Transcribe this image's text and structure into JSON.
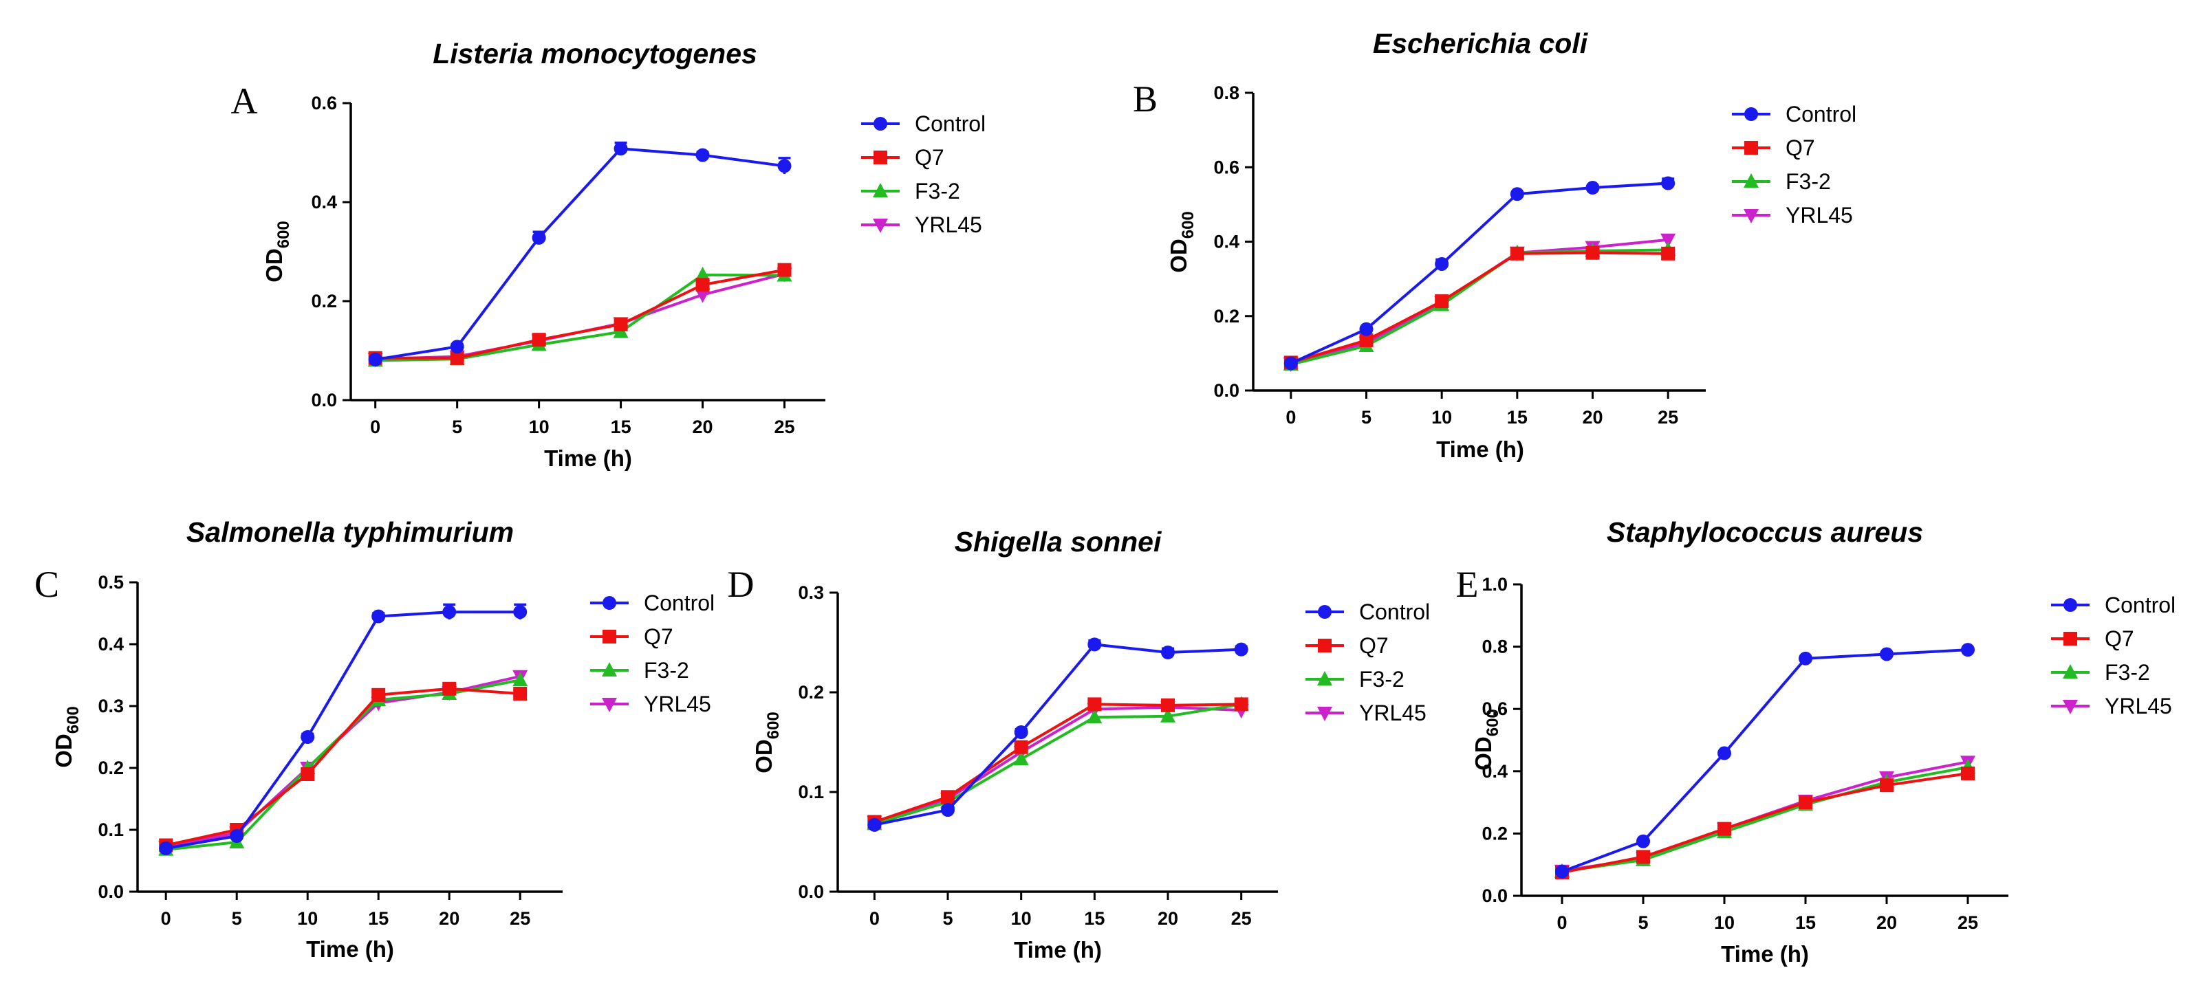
{
  "figure": {
    "background": "#ffffff"
  },
  "series_styles": [
    {
      "name": "Control",
      "color": "#1a1aee",
      "marker": "circle"
    },
    {
      "name": "Q7",
      "color": "#ee1111",
      "marker": "square"
    },
    {
      "name": "F3-2",
      "color": "#22bb22",
      "marker": "triangle-up"
    },
    {
      "name": "YRL45",
      "color": "#cc22cc",
      "marker": "triangle-down"
    }
  ],
  "chart_data": [
    {
      "panel": "A",
      "type": "line",
      "title": "Listeria monocytogenes",
      "xlabel": "Time (h)",
      "ylabel": "OD",
      "ylabel_sub": "600",
      "x": [
        0,
        5,
        10,
        15,
        20,
        25
      ],
      "xticks": [
        "0",
        "5",
        "10",
        "15",
        "20",
        "25"
      ],
      "xlim": [
        -1.5,
        27.5
      ],
      "yticks": [
        "0.0",
        "0.2",
        "0.4",
        "0.6"
      ],
      "ylim": [
        0,
        0.6
      ],
      "ytick_values": [
        0,
        0.2,
        0.4,
        0.6
      ],
      "legend": [
        "Control",
        "Q7",
        "F3-2",
        "YRL45"
      ],
      "series": [
        {
          "name": "Control",
          "values": [
            0.082,
            0.108,
            0.328,
            0.508,
            0.495,
            0.473
          ],
          "errors": [
            0.005,
            0.005,
            0.012,
            0.012,
            0.006,
            0.016
          ]
        },
        {
          "name": "Q7",
          "values": [
            0.085,
            0.085,
            0.122,
            0.153,
            0.233,
            0.263
          ],
          "errors": [
            0,
            0,
            0,
            0,
            0,
            0
          ]
        },
        {
          "name": "F3-2",
          "values": [
            0.08,
            0.083,
            0.112,
            0.138,
            0.253,
            0.252
          ],
          "errors": [
            0,
            0,
            0,
            0,
            0,
            0
          ]
        },
        {
          "name": "YRL45",
          "values": [
            0.083,
            0.088,
            0.12,
            0.155,
            0.213,
            0.255
          ],
          "errors": [
            0,
            0,
            0,
            0,
            0,
            0
          ]
        }
      ]
    },
    {
      "panel": "B",
      "type": "line",
      "title": "Escherichia coli",
      "xlabel": "Time (h)",
      "ylabel": "OD",
      "ylabel_sub": "600",
      "x": [
        0,
        5,
        10,
        15,
        20,
        25
      ],
      "xticks": [
        "0",
        "5",
        "10",
        "15",
        "20",
        "25"
      ],
      "xlim": [
        -2.5,
        27.5
      ],
      "yticks": [
        "0.0",
        "0.2",
        "0.4",
        "0.6",
        "0.8"
      ],
      "ylim": [
        0,
        0.8
      ],
      "ytick_values": [
        0,
        0.2,
        0.4,
        0.6,
        0.8
      ],
      "legend": [
        "Control",
        "Q7",
        "F3-2",
        "YRL45"
      ],
      "series": [
        {
          "name": "Control",
          "values": [
            0.073,
            0.165,
            0.34,
            0.528,
            0.545,
            0.557
          ],
          "errors": [
            0.004,
            0.005,
            0.012,
            0.005,
            0.005,
            0.012
          ]
        },
        {
          "name": "Q7",
          "values": [
            0.075,
            0.135,
            0.24,
            0.368,
            0.37,
            0.368
          ],
          "errors": [
            0,
            0,
            0,
            0,
            0,
            0
          ]
        },
        {
          "name": "F3-2",
          "values": [
            0.07,
            0.12,
            0.23,
            0.37,
            0.375,
            0.378
          ],
          "errors": [
            0,
            0,
            0,
            0,
            0,
            0
          ]
        },
        {
          "name": "YRL45",
          "values": [
            0.072,
            0.128,
            0.237,
            0.37,
            0.385,
            0.405
          ],
          "errors": [
            0,
            0,
            0,
            0,
            0,
            0
          ]
        }
      ]
    },
    {
      "panel": "C",
      "type": "line",
      "title": "Salmonella typhimurium",
      "xlabel": "Time (h)",
      "ylabel": "OD",
      "ylabel_sub": "600",
      "x": [
        0,
        5,
        10,
        15,
        20,
        25
      ],
      "xticks": [
        "0",
        "5",
        "10",
        "15",
        "20",
        "25"
      ],
      "xlim": [
        -2,
        28
      ],
      "yticks": [
        "0.0",
        "0.1",
        "0.2",
        "0.3",
        "0.4",
        "0.5"
      ],
      "ylim": [
        0,
        0.5
      ],
      "ytick_values": [
        0,
        0.1,
        0.2,
        0.3,
        0.4,
        0.5
      ],
      "legend": [
        "Control",
        "Q7",
        "F3-2",
        "YRL45"
      ],
      "series": [
        {
          "name": "Control",
          "values": [
            0.07,
            0.09,
            0.25,
            0.445,
            0.452,
            0.452
          ],
          "errors": [
            0.004,
            0.004,
            0.005,
            0.005,
            0.012,
            0.012
          ]
        },
        {
          "name": "Q7",
          "values": [
            0.075,
            0.1,
            0.19,
            0.318,
            0.328,
            0.32
          ],
          "errors": [
            0,
            0,
            0,
            0,
            0,
            0
          ]
        },
        {
          "name": "F3-2",
          "values": [
            0.068,
            0.08,
            0.2,
            0.31,
            0.32,
            0.342
          ],
          "errors": [
            0,
            0,
            0,
            0,
            0,
            0
          ]
        },
        {
          "name": "YRL45",
          "values": [
            0.072,
            0.095,
            0.2,
            0.305,
            0.322,
            0.348
          ],
          "errors": [
            0,
            0,
            0,
            0,
            0,
            0
          ]
        }
      ]
    },
    {
      "panel": "D",
      "type": "line",
      "title": "Shigella sonnei",
      "xlabel": "Time (h)",
      "ylabel": "OD",
      "ylabel_sub": "600",
      "x": [
        0,
        5,
        10,
        15,
        20,
        25
      ],
      "xticks": [
        "0",
        "5",
        "10",
        "15",
        "20",
        "25"
      ],
      "xlim": [
        -2.5,
        27.5
      ],
      "yticks": [
        "0.0",
        "0.1",
        "0.2",
        "0.3"
      ],
      "ylim": [
        0,
        0.3
      ],
      "ytick_values": [
        0,
        0.1,
        0.2,
        0.3
      ],
      "legend": [
        "Control",
        "Q7",
        "F3-2",
        "YRL45"
      ],
      "series": [
        {
          "name": "Control",
          "values": [
            0.067,
            0.082,
            0.16,
            0.248,
            0.24,
            0.243
          ],
          "errors": [
            0.003,
            0.003,
            0.003,
            0.004,
            0.004,
            0.003
          ]
        },
        {
          "name": "Q7",
          "values": [
            0.07,
            0.095,
            0.145,
            0.188,
            0.187,
            0.188
          ],
          "errors": [
            0,
            0,
            0,
            0,
            0,
            0
          ]
        },
        {
          "name": "F3-2",
          "values": [
            0.068,
            0.09,
            0.133,
            0.175,
            0.176,
            0.188
          ],
          "errors": [
            0,
            0,
            0,
            0,
            0,
            0
          ]
        },
        {
          "name": "YRL45",
          "values": [
            0.07,
            0.093,
            0.14,
            0.183,
            0.185,
            0.182
          ],
          "errors": [
            0,
            0,
            0,
            0,
            0,
            0
          ]
        }
      ]
    },
    {
      "panel": "E",
      "type": "line",
      "title": "Staphylococcus aureus",
      "xlabel": "Time (h)",
      "ylabel": "OD",
      "ylabel_sub": "600",
      "x": [
        0,
        5,
        10,
        15,
        20,
        25
      ],
      "xticks": [
        "0",
        "5",
        "10",
        "15",
        "20",
        "25"
      ],
      "xlim": [
        -2.5,
        27.5
      ],
      "yticks": [
        "0.0",
        "0.2",
        "0.4",
        "0.6",
        "0.8",
        "1.0"
      ],
      "ylim": [
        0,
        1.0
      ],
      "ytick_values": [
        0,
        0.2,
        0.4,
        0.6,
        0.8,
        1.0
      ],
      "legend": [
        "Control",
        "Q7",
        "F3-2",
        "YRL45"
      ],
      "series": [
        {
          "name": "Control",
          "values": [
            0.078,
            0.175,
            0.458,
            0.762,
            0.776,
            0.79
          ],
          "errors": [
            0.004,
            0.004,
            0.005,
            0.005,
            0.005,
            0.005
          ]
        },
        {
          "name": "Q7",
          "values": [
            0.075,
            0.125,
            0.215,
            0.3,
            0.355,
            0.393
          ],
          "errors": [
            0,
            0,
            0,
            0,
            0,
            0
          ]
        },
        {
          "name": "F3-2",
          "values": [
            0.078,
            0.115,
            0.205,
            0.293,
            0.365,
            0.413
          ],
          "errors": [
            0,
            0,
            0,
            0,
            0,
            0
          ]
        },
        {
          "name": "YRL45",
          "values": [
            0.08,
            0.12,
            0.215,
            0.305,
            0.38,
            0.43
          ],
          "errors": [
            0,
            0,
            0,
            0,
            0,
            0
          ]
        }
      ]
    }
  ]
}
